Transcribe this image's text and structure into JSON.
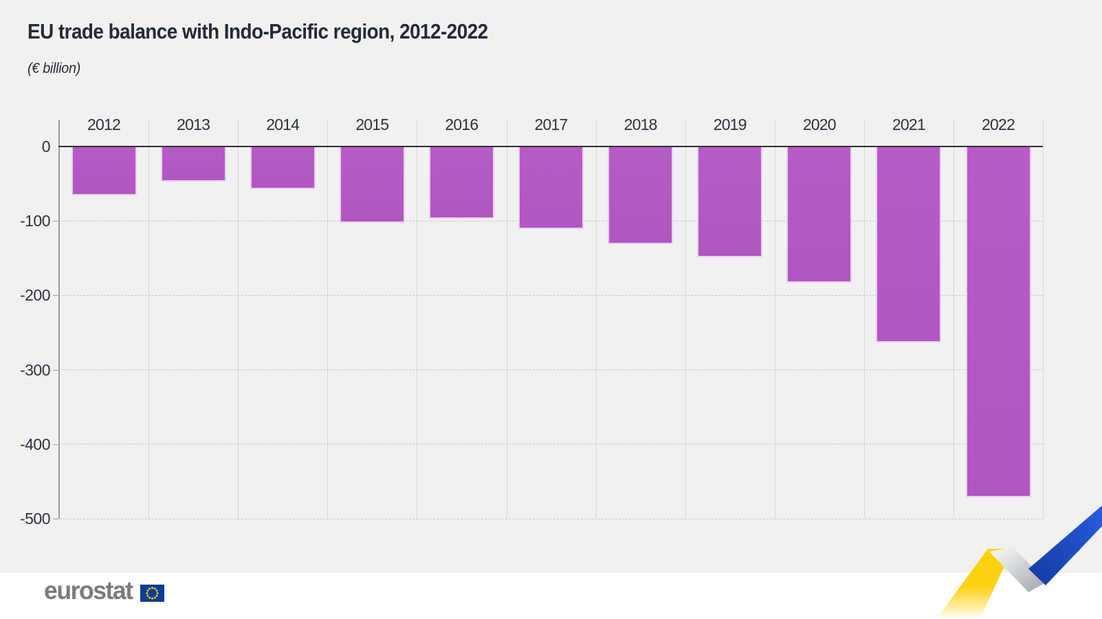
{
  "header": {
    "title": "EU trade balance with Indo-Pacific region, 2012-2022",
    "subtitle": "(€ billion)"
  },
  "footer": {
    "logo_text": "eurostat"
  },
  "colors": {
    "background": "#f1f1f2",
    "footer_background": "#ffffff",
    "bar": "#b45ac4",
    "title_text": "#232b38",
    "axis_text": "#2b3340",
    "zero_line": "#2e2e33",
    "dashed_grid": "#c6c6c9",
    "vertical_grid": "#d7d7da",
    "axis_line": "#9b9ba0",
    "logo_gray": "#797b7f",
    "eu_flag_blue": "#0b3d97",
    "eu_flag_stars": "#ffcc00",
    "ribbon_yellow": "#fed10a",
    "ribbon_silver": "#a9adb4",
    "ribbon_blue": "#1d4fd0"
  },
  "chart_data": {
    "type": "bar",
    "title": "EU trade balance with Indo-Pacific region, 2012-2022",
    "unit_label": "(€ billion)",
    "categories": [
      "2012",
      "2013",
      "2014",
      "2015",
      "2016",
      "2017",
      "2018",
      "2019",
      "2020",
      "2021",
      "2022"
    ],
    "values": [
      -66,
      -47,
      -57,
      -103,
      -97,
      -111,
      -131,
      -149,
      -183,
      -263,
      -471
    ],
    "xlabel": "",
    "ylabel": "€ billion",
    "ylim": [
      -500,
      0
    ],
    "yticks": [
      0,
      -100,
      -200,
      -300,
      -400,
      -500
    ],
    "grid": "vertical column separators; dashed horizontal gridlines at each 100",
    "legend": false,
    "bar_color": "#b45ac4"
  }
}
